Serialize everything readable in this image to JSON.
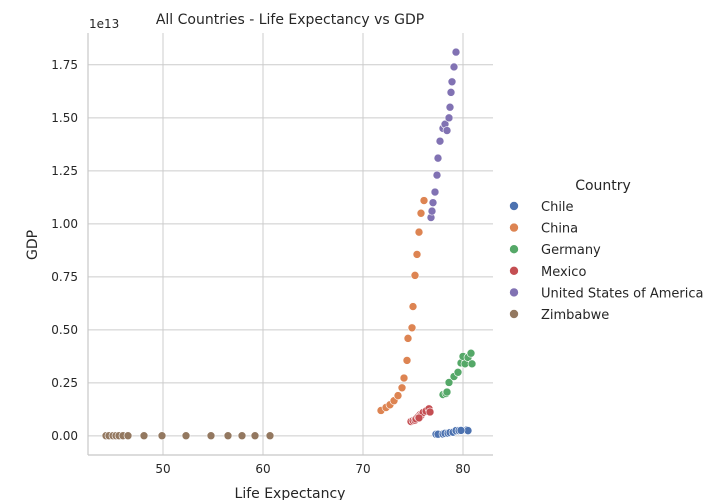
{
  "chart_data": {
    "type": "scatter",
    "title": "All Countries - Life Expectancy vs GDP",
    "xlabel": "Life Expectancy",
    "ylabel": "GDP",
    "y_offset_label": "1e13",
    "y_scale": 10000000000000.0,
    "xlim": [
      42.5,
      83.0
    ],
    "ylim": [
      -0.09,
      1.9
    ],
    "x_ticks": [
      50,
      60,
      70,
      80
    ],
    "y_ticks": [
      0.0,
      0.25,
      0.5,
      0.75,
      1.0,
      1.25,
      1.5,
      1.75
    ],
    "y_tick_labels": [
      "0.00",
      "0.25",
      "0.50",
      "0.75",
      "1.00",
      "1.25",
      "1.50",
      "1.75"
    ],
    "grid": true,
    "legend": {
      "title": "Country",
      "placement": "right"
    },
    "series": [
      {
        "name": "Chile",
        "color": "#4c72b0",
        "points": [
          [
            77.3,
            0.008
          ],
          [
            77.5,
            0.008
          ],
          [
            78.0,
            0.009
          ],
          [
            78.2,
            0.012
          ],
          [
            78.5,
            0.013
          ],
          [
            78.7,
            0.016
          ],
          [
            79.0,
            0.017
          ],
          [
            79.3,
            0.025
          ],
          [
            79.7,
            0.026
          ],
          [
            79.9,
            0.026
          ],
          [
            80.1,
            0.027
          ],
          [
            80.3,
            0.027
          ],
          [
            80.4,
            0.028
          ],
          [
            80.5,
            0.025
          ],
          [
            79.6,
            0.025
          ],
          [
            79.8,
            0.026
          ]
        ]
      },
      {
        "name": "China",
        "color": "#dd8452",
        "points": [
          [
            71.8,
            0.12
          ],
          [
            72.3,
            0.134
          ],
          [
            72.7,
            0.147
          ],
          [
            73.1,
            0.166
          ],
          [
            73.5,
            0.19
          ],
          [
            73.9,
            0.227
          ],
          [
            74.1,
            0.273
          ],
          [
            74.4,
            0.356
          ],
          [
            74.5,
            0.46
          ],
          [
            74.9,
            0.51
          ],
          [
            75.0,
            0.61
          ],
          [
            75.2,
            0.757
          ],
          [
            75.4,
            0.856
          ],
          [
            75.6,
            0.961
          ],
          [
            75.8,
            1.05
          ],
          [
            76.1,
            1.11
          ]
        ]
      },
      {
        "name": "Germany",
        "color": "#55a868",
        "points": [
          [
            78.0,
            0.195
          ],
          [
            78.3,
            0.2
          ],
          [
            78.4,
            0.207
          ],
          [
            78.6,
            0.252
          ],
          [
            79.1,
            0.28
          ],
          [
            79.5,
            0.3
          ],
          [
            79.8,
            0.344
          ],
          [
            80.0,
            0.375
          ],
          [
            80.2,
            0.34
          ],
          [
            80.5,
            0.37
          ],
          [
            80.8,
            0.39
          ],
          [
            80.9,
            0.34
          ]
        ]
      },
      {
        "name": "Mexico",
        "color": "#c44e52",
        "points": [
          [
            74.8,
            0.068
          ],
          [
            75.0,
            0.072
          ],
          [
            75.2,
            0.074
          ],
          [
            75.3,
            0.08
          ],
          [
            75.5,
            0.09
          ],
          [
            75.7,
            0.1
          ],
          [
            75.8,
            0.096
          ],
          [
            76.0,
            0.11
          ],
          [
            76.3,
            0.117
          ],
          [
            76.6,
            0.128
          ],
          [
            76.7,
            0.113
          ],
          [
            75.6,
            0.085
          ]
        ]
      },
      {
        "name": "United States of America",
        "color": "#8172b3",
        "points": [
          [
            76.8,
            1.03
          ],
          [
            76.9,
            1.06
          ],
          [
            77.0,
            1.1
          ],
          [
            77.2,
            1.15
          ],
          [
            77.4,
            1.23
          ],
          [
            77.5,
            1.31
          ],
          [
            77.7,
            1.39
          ],
          [
            78.0,
            1.45
          ],
          [
            78.2,
            1.47
          ],
          [
            78.4,
            1.44
          ],
          [
            78.6,
            1.5
          ],
          [
            78.7,
            1.55
          ],
          [
            78.8,
            1.62
          ],
          [
            78.9,
            1.67
          ],
          [
            79.1,
            1.74
          ],
          [
            79.3,
            1.81
          ]
        ]
      },
      {
        "name": "Zimbabwe",
        "color": "#937860",
        "points": [
          [
            44.3,
            0.001
          ],
          [
            44.6,
            0.001
          ],
          [
            45.0,
            0.001
          ],
          [
            45.3,
            0.001
          ],
          [
            45.6,
            0.001
          ],
          [
            46.0,
            0.001
          ],
          [
            46.5,
            0.001
          ],
          [
            48.1,
            0.001
          ],
          [
            49.9,
            0.001
          ],
          [
            52.3,
            0.001
          ],
          [
            54.8,
            0.001
          ],
          [
            56.5,
            0.001
          ],
          [
            57.9,
            0.001
          ],
          [
            59.2,
            0.001
          ],
          [
            60.7,
            0.001
          ]
        ]
      }
    ]
  }
}
